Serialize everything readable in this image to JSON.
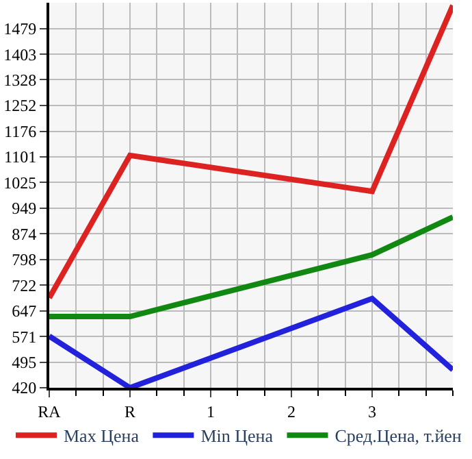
{
  "chart_data": {
    "type": "line",
    "categories": [
      "RA",
      "R",
      "1",
      "2",
      "3",
      null
    ],
    "series": [
      {
        "name": "Max Цена",
        "color": "#dd2222",
        "values": [
          685,
          1105,
          null,
          null,
          999,
          1547
        ]
      },
      {
        "name": "Min Цена",
        "color": "#2222dd",
        "values": [
          572,
          420,
          null,
          null,
          683,
          473
        ]
      },
      {
        "name": "Сред.Цена, т.йен",
        "color": "#118811",
        "values": [
          630,
          630,
          null,
          null,
          812,
          923
        ]
      }
    ],
    "ylim": [
      420,
      1555
    ],
    "yticks": [
      420,
      495,
      571,
      647,
      722,
      798,
      874,
      949,
      1025,
      1101,
      1176,
      1252,
      1328,
      1403,
      1479
    ],
    "grid": true,
    "legend": "bottom",
    "marker": "none",
    "line_style": "solid"
  }
}
